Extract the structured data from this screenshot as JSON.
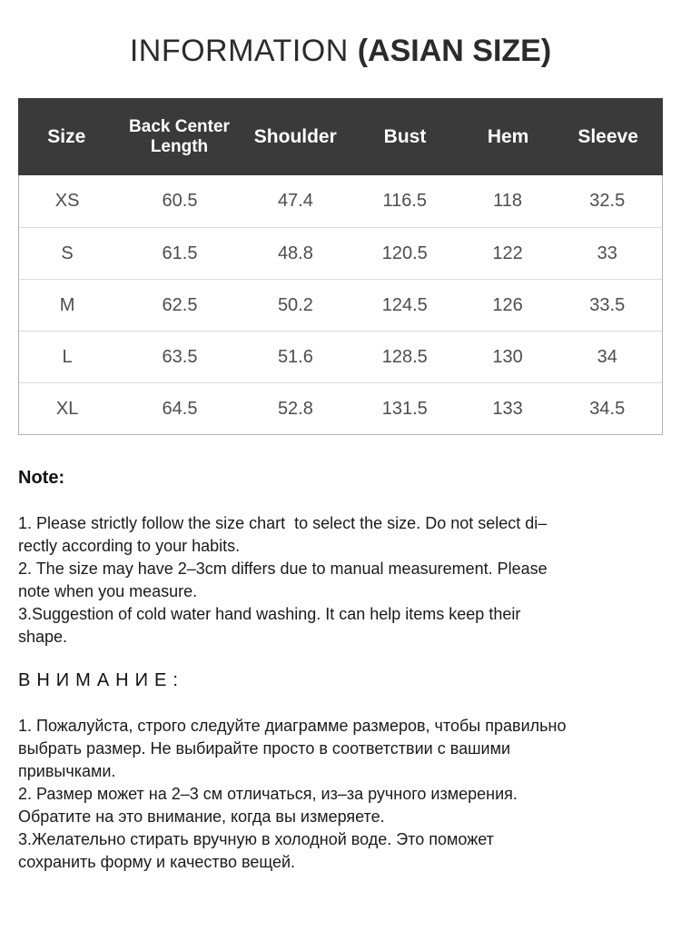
{
  "title": {
    "light": "INFORMATION ",
    "bold": "(ASIAN SIZE)"
  },
  "size_table": {
    "columns": [
      "Size",
      "Back Center Length",
      "Shoulder",
      "Bust",
      "Hem",
      "Sleeve"
    ],
    "rows": [
      {
        "size": "XS",
        "values": [
          "60.5",
          "47.4",
          "116.5",
          "118",
          "32.5"
        ]
      },
      {
        "size": "S",
        "values": [
          "61.5",
          "48.8",
          "120.5",
          "122",
          "33"
        ]
      },
      {
        "size": "M",
        "values": [
          "62.5",
          "50.2",
          "124.5",
          "126",
          "33.5"
        ]
      },
      {
        "size": "L",
        "values": [
          "63.5",
          "51.6",
          "128.5",
          "130",
          "34"
        ]
      },
      {
        "size": "XL",
        "values": [
          "64.5",
          "52.8",
          "131.5",
          "133",
          "34.5"
        ]
      }
    ]
  },
  "notes_en": {
    "heading": "Note:",
    "items": [
      "1. Please strictly follow the size chart  to select the size. Do not select di–\nrectly according to your habits.",
      "2. The size may have 2–3cm differs due to manual measurement. Please\nnote when you measure.",
      "3.Suggestion of cold water hand washing. It can help items keep their\nshape."
    ]
  },
  "notes_ru": {
    "heading": "ВНИМАНИЕ:",
    "items": [
      "1. Пожалуйста, строго следуйте диаграмме размеров, чтобы правильно\nвыбрать размер. Не выбирайте просто в соответствии с вашими\nпривычками.",
      "2. Размер может на 2–3 см отличаться, из–за ручного измерения.\nОбратите на это внимание, когда вы измеряете.",
      "3.Желательно стирать вручную в холодной воде. Это поможет\nсохранить форму и качество вещей."
    ]
  },
  "colors": {
    "header_bg": "#3a3a3a",
    "header_text": "#ffffff",
    "body_text": "#4d4d4d",
    "note_text": "#1a1a1a"
  }
}
